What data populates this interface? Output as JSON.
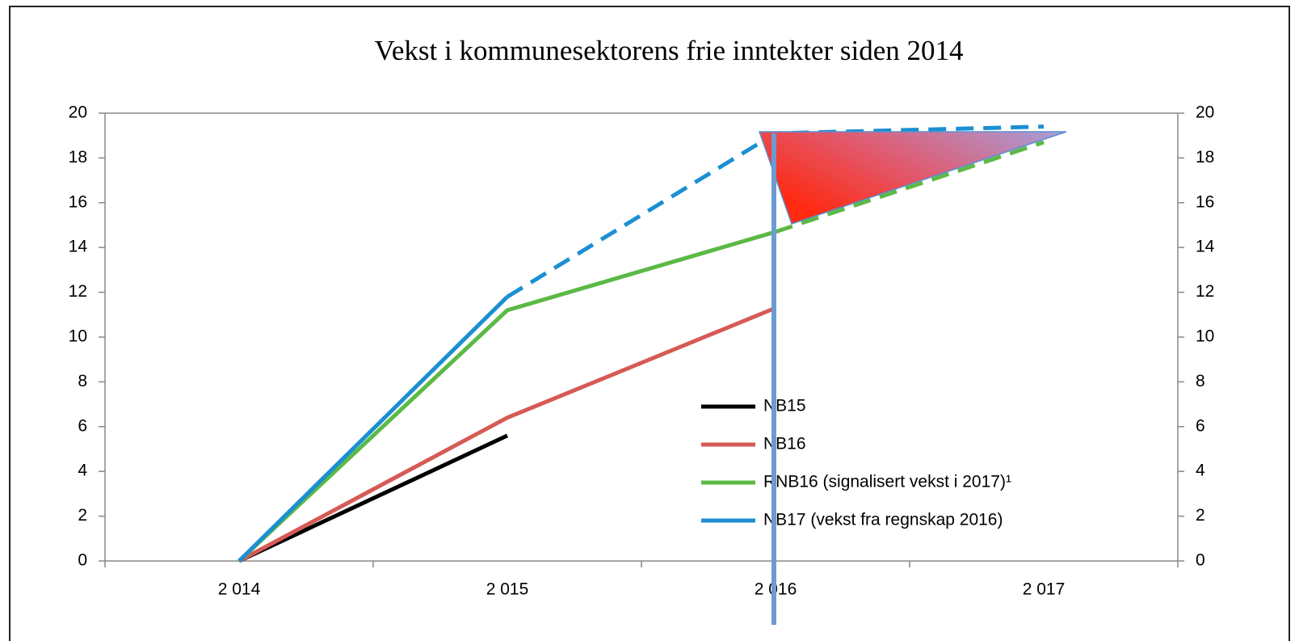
{
  "chart_data": {
    "type": "line",
    "title": "Vekst i kommunesektorens frie inntekter siden 2014",
    "categories": [
      "2 014",
      "2 015",
      "2 016",
      "2 017"
    ],
    "series": [
      {
        "name": "NB15",
        "color": "#000000",
        "values": [
          0,
          5.6,
          null,
          null
        ]
      },
      {
        "name": "NB16",
        "color": "#d65a55",
        "values": [
          0,
          6.4,
          11.3,
          null
        ]
      },
      {
        "name": "RNB16 (signalisert vekst i 2017)¹",
        "color": "#5bb946",
        "values": [
          0,
          11.2,
          14.7,
          18.7
        ],
        "dash_from": 2
      },
      {
        "name": "NB17 (vekst fra regnskap 2016)",
        "color": "#1b8fd2",
        "values": [
          0,
          11.8,
          19.1,
          19.4
        ],
        "dash_from": 1
      }
    ],
    "ylim": [
      0,
      20
    ],
    "yticks": [
      0,
      2,
      4,
      6,
      8,
      10,
      12,
      14,
      16,
      18,
      20
    ],
    "y2lim": [
      0,
      20
    ],
    "y2ticks": [
      0,
      2,
      4,
      6,
      8,
      10,
      12,
      14,
      16,
      18,
      20
    ],
    "grid": false
  }
}
